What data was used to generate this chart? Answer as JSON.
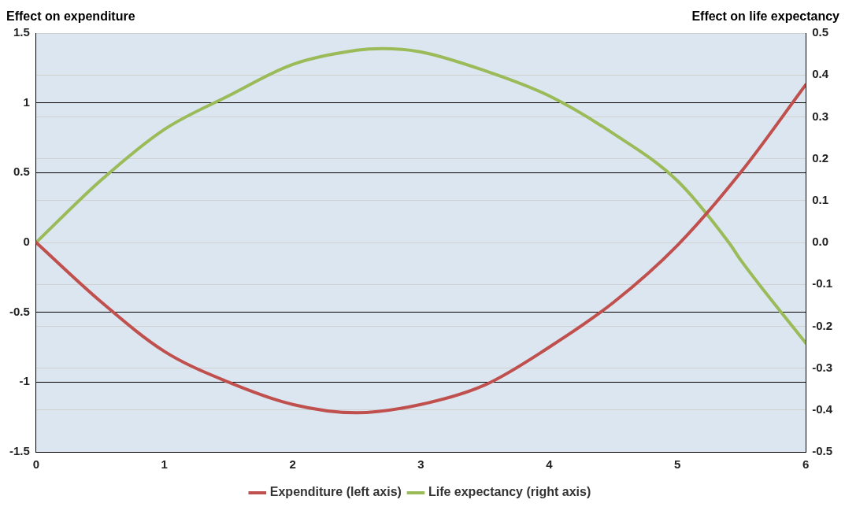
{
  "chart_data": {
    "type": "line",
    "ylabel": "Effect on expenditure",
    "y2label": "Effect on life expectancy",
    "xlim": [
      0,
      6
    ],
    "xticks": [
      0,
      1,
      2,
      3,
      4,
      5,
      6
    ],
    "ylim": [
      -1.5,
      1.5
    ],
    "yticks": [
      -1.5,
      -1,
      -0.5,
      0,
      0.5,
      1,
      1.5
    ],
    "y2lim": [
      -0.5,
      0.5
    ],
    "y2ticks": [
      {
        "value": -0.5,
        "label": "-0.5"
      },
      {
        "value": -0.4,
        "label": "-0.4"
      },
      {
        "value": -0.3,
        "label": "-0.3"
      },
      {
        "value": -0.2,
        "label": "-0.2"
      },
      {
        "value": -0.1,
        "label": "-0.1"
      },
      {
        "value": 0,
        "label": "0.0"
      },
      {
        "value": 0.1,
        "label": "0.1"
      },
      {
        "value": 0.2,
        "label": "0.2"
      },
      {
        "value": 0.3,
        "label": "0.3"
      },
      {
        "value": 0.4,
        "label": "0.4"
      },
      {
        "value": 0.5,
        "label": "0.5"
      }
    ],
    "grid": "y",
    "legend": "bottom",
    "marker": "none",
    "line_style": "solid",
    "series": [
      {
        "name": "Expenditure (left axis)",
        "color": "#c0504d",
        "x": [
          0,
          0.5,
          1,
          1.5,
          2,
          2.5,
          3,
          3.5,
          4,
          4.5,
          5,
          5.5,
          6
        ],
        "values": [
          0,
          -0.42,
          -0.78,
          -1.0,
          -1.16,
          -1.22,
          -1.16,
          -1.02,
          -0.75,
          -0.43,
          -0.02,
          0.51,
          1.13
        ]
      },
      {
        "name": "Life expectancy (right axis)",
        "color": "#9bbb59",
        "axis": "y2",
        "x": [
          0,
          0.5,
          1,
          1.5,
          2,
          2.5,
          2.7,
          3,
          3.5,
          4,
          4.5,
          5,
          5.4,
          5.5,
          6
        ],
        "values": [
          0,
          0.147,
          0.27,
          0.35,
          0.425,
          0.459,
          0.463,
          0.455,
          0.41,
          0.35,
          0.26,
          0.147,
          0,
          -0.045,
          -0.24
        ]
      }
    ]
  }
}
